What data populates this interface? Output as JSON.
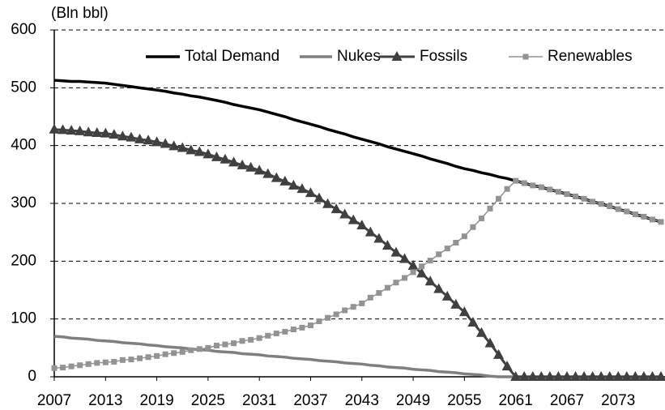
{
  "chart_data": {
    "type": "line",
    "ylabel": "(Bln bbl)",
    "x": [
      2007,
      2008,
      2009,
      2010,
      2011,
      2012,
      2013,
      2014,
      2015,
      2016,
      2017,
      2018,
      2019,
      2020,
      2021,
      2022,
      2023,
      2024,
      2025,
      2026,
      2027,
      2028,
      2029,
      2030,
      2031,
      2032,
      2033,
      2034,
      2035,
      2036,
      2037,
      2038,
      2039,
      2040,
      2041,
      2042,
      2043,
      2044,
      2045,
      2046,
      2047,
      2048,
      2049,
      2050,
      2051,
      2052,
      2053,
      2054,
      2055,
      2056,
      2057,
      2058,
      2059,
      2060,
      2061,
      2062,
      2063,
      2064,
      2065,
      2066,
      2067,
      2068,
      2069,
      2070,
      2071,
      2072,
      2073,
      2074,
      2075,
      2076,
      2077,
      2078
    ],
    "series": [
      {
        "name": "Total Demand",
        "color": "#000000",
        "marker": "none",
        "values": [
          513,
          512,
          511,
          511,
          510,
          509,
          508,
          506,
          504,
          502,
          500,
          498,
          496,
          494,
          491,
          489,
          486,
          484,
          481,
          478,
          475,
          471,
          468,
          465,
          462,
          458,
          454,
          450,
          445,
          441,
          437,
          433,
          428,
          424,
          420,
          415,
          411,
          407,
          403,
          398,
          394,
          390,
          386,
          382,
          377,
          373,
          369,
          364,
          360,
          357,
          353,
          350,
          346,
          343,
          339,
          335,
          331,
          328,
          324,
          320,
          316,
          312,
          308,
          303,
          299,
          295,
          290,
          286,
          281,
          277,
          272,
          268
        ]
      },
      {
        "name": "Nukes",
        "color": "#7f7f7f",
        "marker": "none",
        "values": [
          70,
          69,
          67,
          66,
          65,
          63,
          62,
          61,
          59,
          58,
          57,
          55,
          54,
          52,
          51,
          50,
          48,
          47,
          46,
          44,
          43,
          42,
          40,
          39,
          38,
          36,
          35,
          34,
          32,
          31,
          30,
          28,
          27,
          26,
          24,
          23,
          22,
          20,
          19,
          17,
          16,
          15,
          13,
          12,
          11,
          9,
          8,
          7,
          5,
          4,
          3,
          1,
          0,
          0,
          0,
          0,
          0,
          0,
          0,
          0,
          0,
          0,
          0,
          0,
          0,
          0,
          0,
          0,
          0,
          0,
          0,
          0
        ]
      },
      {
        "name": "Fossils",
        "color": "#404040",
        "marker": "triangle",
        "values": [
          428,
          427,
          426,
          425,
          423,
          422,
          421,
          419,
          416,
          414,
          411,
          409,
          406,
          403,
          399,
          396,
          392,
          389,
          385,
          380,
          376,
          371,
          366,
          362,
          357,
          351,
          344,
          338,
          331,
          325,
          318,
          309,
          299,
          290,
          281,
          271,
          262,
          250,
          239,
          227,
          215,
          204,
          192,
          179,
          165,
          152,
          139,
          125,
          112,
          94,
          76,
          58,
          38,
          18,
          0,
          0,
          0,
          0,
          0,
          0,
          0,
          0,
          0,
          0,
          0,
          0,
          0,
          0,
          0,
          0,
          0,
          0
        ]
      },
      {
        "name": "Renewables",
        "color": "#939393",
        "marker": "square",
        "values": [
          15,
          16,
          18,
          20,
          22,
          24,
          25,
          26,
          29,
          30,
          32,
          34,
          36,
          39,
          41,
          43,
          46,
          48,
          50,
          54,
          56,
          58,
          62,
          64,
          67,
          71,
          75,
          78,
          82,
          85,
          89,
          96,
          102,
          108,
          115,
          121,
          127,
          137,
          145,
          154,
          163,
          171,
          181,
          191,
          201,
          212,
          222,
          232,
          243,
          259,
          274,
          291,
          308,
          325,
          339,
          335,
          331,
          328,
          324,
          320,
          316,
          312,
          308,
          303,
          299,
          295,
          290,
          286,
          281,
          277,
          272,
          268
        ]
      }
    ],
    "xlim": [
      2007,
      2078
    ],
    "xticks": [
      2007,
      2013,
      2019,
      2025,
      2031,
      2037,
      2043,
      2049,
      2055,
      2061,
      2067,
      2073
    ],
    "ylim": [
      0,
      600
    ],
    "yticks": [
      0,
      100,
      200,
      300,
      400,
      500,
      600
    ],
    "grid": true,
    "legend": "top"
  }
}
